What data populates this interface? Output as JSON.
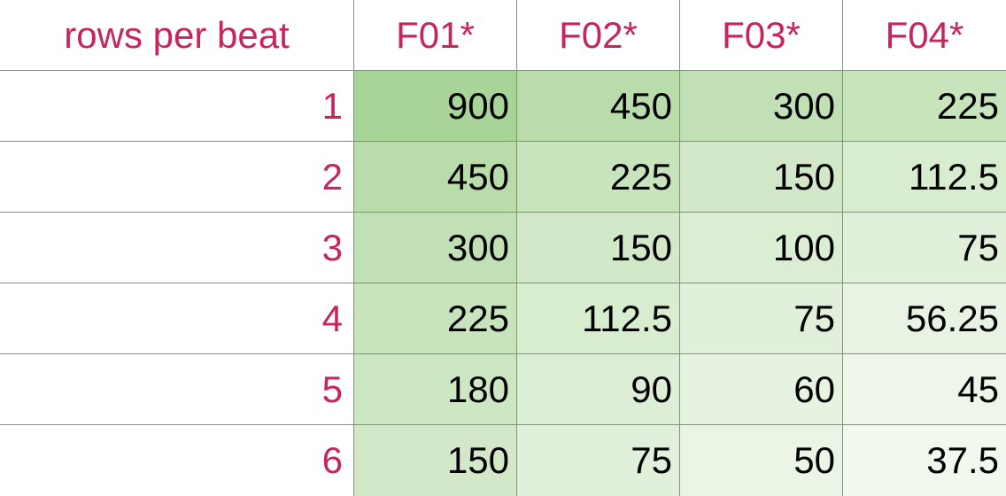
{
  "table": {
    "corner_label": "rows per beat",
    "columns": [
      "F01*",
      "F02*",
      "F03*",
      "F04*"
    ],
    "rows": [
      {
        "label": "1",
        "values": [
          "900",
          "450",
          "300",
          "225"
        ]
      },
      {
        "label": "2",
        "values": [
          "450",
          "225",
          "150",
          "112.5"
        ]
      },
      {
        "label": "3",
        "values": [
          "300",
          "150",
          "100",
          "75"
        ]
      },
      {
        "label": "4",
        "values": [
          "225",
          "112.5",
          "75",
          "56.25"
        ]
      },
      {
        "label": "5",
        "values": [
          "180",
          "90",
          "60",
          "45"
        ]
      },
      {
        "label": "6",
        "values": [
          "150",
          "75",
          "50",
          "37.5"
        ]
      }
    ],
    "colors": {
      "label_text": "#c8245f",
      "value_text": "#000000",
      "grid_line": "#8a8a8a",
      "heat_high": "#a9d497",
      "heat_low": "#f1f8ee"
    }
  }
}
